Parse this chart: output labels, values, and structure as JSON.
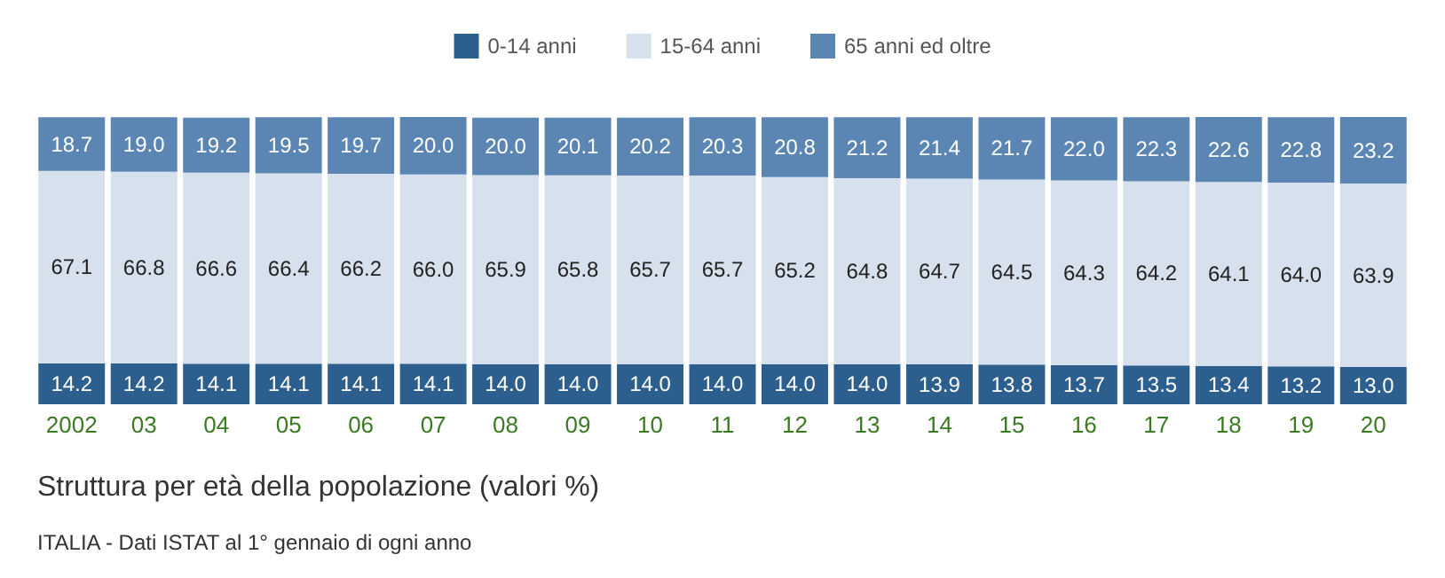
{
  "chart_data": {
    "type": "bar",
    "title": "Struttura per età della popolazione (valori %)",
    "annotations": [
      "ITALIA - Dati ISTAT al 1° gennaio di ogni anno"
    ],
    "categories": [
      "2002",
      "03",
      "04",
      "05",
      "06",
      "07",
      "08",
      "09",
      "10",
      "11",
      "12",
      "13",
      "14",
      "15",
      "16",
      "17",
      "18",
      "19",
      "20"
    ],
    "stacked": true,
    "grid": false,
    "legend": "top",
    "tick_labels": "x",
    "series": [
      {
        "name": "0-14 anni",
        "color": "#2d5f8e",
        "values": [
          14.2,
          14.2,
          14.1,
          14.1,
          14.1,
          14.1,
          14.0,
          14.0,
          14.0,
          14.0,
          14.0,
          14.0,
          13.9,
          13.8,
          13.7,
          13.5,
          13.4,
          13.2,
          13.0
        ],
        "value_labels": [
          "14.2",
          "14.2",
          "14.1",
          "14.1",
          "14.1",
          "14.1",
          "14.0",
          "14.0",
          "14.0",
          "14.0",
          "14.0",
          "14.0",
          "13.9",
          "13.8",
          "13.7",
          "13.5",
          "13.4",
          "13.2",
          "13.0"
        ]
      },
      {
        "name": "15-64 anni",
        "color": "#d6e1ed",
        "values": [
          67.1,
          66.8,
          66.6,
          66.4,
          66.2,
          66.0,
          65.9,
          65.8,
          65.7,
          65.7,
          65.2,
          64.8,
          64.7,
          64.5,
          64.3,
          64.2,
          64.1,
          64.0,
          63.9
        ],
        "value_labels": [
          "67.1",
          "66.8",
          "66.6",
          "66.4",
          "66.2",
          "66.0",
          "65.9",
          "65.8",
          "65.7",
          "65.7",
          "65.2",
          "64.8",
          "64.7",
          "64.5",
          "64.3",
          "64.2",
          "64.1",
          "64.0",
          "63.9"
        ]
      },
      {
        "name": "65 anni ed oltre",
        "color": "#5b86b4",
        "values": [
          18.7,
          19.0,
          19.2,
          19.5,
          19.7,
          20.0,
          20.0,
          20.1,
          20.2,
          20.3,
          20.8,
          21.2,
          21.4,
          21.7,
          22.0,
          22.3,
          22.6,
          22.8,
          23.2
        ],
        "value_labels": [
          "18.7",
          "19.0",
          "19.2",
          "19.5",
          "19.7",
          "20.0",
          "20.0",
          "20.1",
          "20.2",
          "20.3",
          "20.8",
          "21.2",
          "21.4",
          "21.7",
          "22.0",
          "22.3",
          "22.6",
          "22.8",
          "23.2"
        ]
      }
    ]
  }
}
